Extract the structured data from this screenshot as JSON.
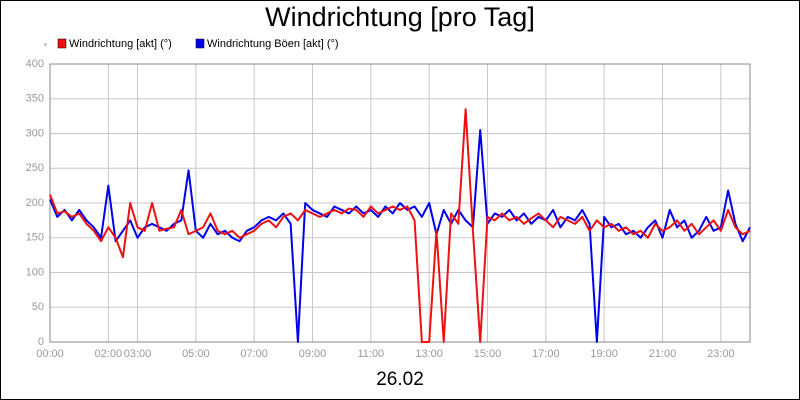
{
  "chart_data": {
    "type": "line",
    "title": "Windrichtung [pro Tag]",
    "xlabel": "26.02",
    "x": [
      0,
      0.25,
      0.5,
      0.75,
      1,
      1.25,
      1.5,
      1.75,
      2,
      2.25,
      2.5,
      2.75,
      3,
      3.25,
      3.5,
      3.75,
      4,
      4.25,
      4.5,
      4.75,
      5,
      5.25,
      5.5,
      5.75,
      6,
      6.25,
      6.5,
      6.75,
      7,
      7.25,
      7.5,
      7.75,
      8,
      8.25,
      8.5,
      8.75,
      9,
      9.25,
      9.5,
      9.75,
      10,
      10.25,
      10.5,
      10.75,
      11,
      11.25,
      11.5,
      11.75,
      12,
      12.25,
      12.5,
      12.75,
      13,
      13.25,
      13.5,
      13.75,
      14,
      14.25,
      14.5,
      14.75,
      15,
      15.25,
      15.5,
      15.75,
      16,
      16.25,
      16.5,
      16.75,
      17,
      17.25,
      17.5,
      17.75,
      18,
      18.25,
      18.5,
      18.75,
      19,
      19.25,
      19.5,
      19.75,
      20,
      20.25,
      20.5,
      20.75,
      21,
      21.25,
      21.5,
      21.75,
      22,
      22.25,
      22.5,
      22.75,
      23,
      23.25,
      23.5,
      23.75,
      24
    ],
    "series": [
      {
        "name": "Windrichtung [akt] (°)",
        "color": "#ee1111",
        "values": [
          212,
          185,
          188,
          180,
          185,
          170,
          160,
          145,
          165,
          150,
          122,
          200,
          165,
          160,
          200,
          160,
          163,
          165,
          190,
          155,
          160,
          165,
          185,
          160,
          155,
          160,
          150,
          155,
          160,
          170,
          175,
          165,
          180,
          185,
          175,
          190,
          185,
          180,
          185,
          190,
          185,
          192,
          190,
          180,
          195,
          185,
          190,
          195,
          190,
          195,
          175,
          0,
          0,
          160,
          0,
          185,
          170,
          335,
          160,
          0,
          180,
          175,
          185,
          175,
          180,
          170,
          178,
          185,
          175,
          165,
          180,
          175,
          170,
          180,
          160,
          175,
          165,
          170,
          160,
          165,
          155,
          160,
          150,
          170,
          160,
          165,
          175,
          160,
          170,
          155,
          165,
          175,
          160,
          190,
          165,
          155,
          160
        ]
      },
      {
        "name": "Windrichtung Böen [akt] (°)",
        "color": "#0000ee",
        "values": [
          205,
          180,
          190,
          175,
          190,
          175,
          165,
          150,
          225,
          145,
          160,
          175,
          150,
          165,
          170,
          165,
          160,
          170,
          175,
          247,
          160,
          150,
          170,
          155,
          160,
          150,
          145,
          160,
          165,
          175,
          180,
          175,
          185,
          170,
          0,
          200,
          190,
          185,
          180,
          195,
          190,
          185,
          195,
          185,
          190,
          180,
          195,
          185,
          200,
          190,
          195,
          180,
          200,
          155,
          190,
          170,
          190,
          175,
          165,
          305,
          170,
          185,
          180,
          190,
          175,
          185,
          170,
          180,
          175,
          190,
          165,
          180,
          175,
          190,
          170,
          0,
          180,
          165,
          170,
          155,
          160,
          150,
          165,
          175,
          150,
          190,
          165,
          175,
          150,
          160,
          180,
          160,
          165,
          218,
          170,
          145,
          165
        ]
      }
    ],
    "xlim": [
      0,
      24
    ],
    "xticks": [
      {
        "value": 0,
        "label": "00:00"
      },
      {
        "value": 2,
        "label": "02:00"
      },
      {
        "value": 3,
        "label": "03:00"
      },
      {
        "value": 5,
        "label": "05:00"
      },
      {
        "value": 7,
        "label": "07:00"
      },
      {
        "value": 9,
        "label": "09:00"
      },
      {
        "value": 11,
        "label": "11:00"
      },
      {
        "value": 13,
        "label": "13:00"
      },
      {
        "value": 15,
        "label": "15:00"
      },
      {
        "value": 17,
        "label": "17:00"
      },
      {
        "value": 19,
        "label": "19:00"
      },
      {
        "value": 21,
        "label": "21:00"
      },
      {
        "value": 23,
        "label": "23:00"
      }
    ],
    "ylim": [
      0,
      400
    ],
    "yticks": [
      0,
      50,
      100,
      150,
      200,
      250,
      300,
      350,
      400
    ],
    "grid": true
  }
}
